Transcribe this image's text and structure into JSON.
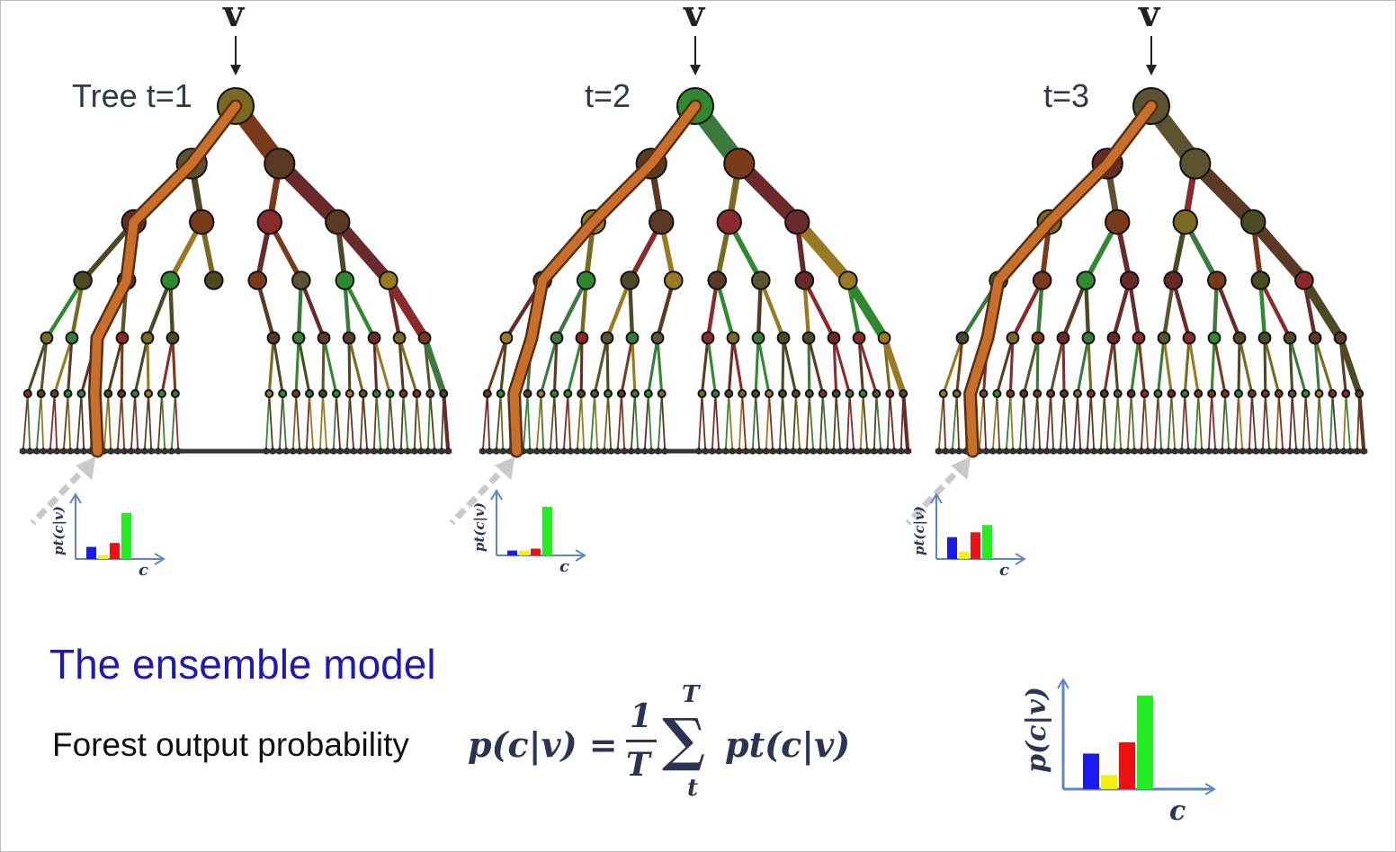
{
  "input_symbol": "v",
  "trees": [
    {
      "label": "Tree t=1",
      "hist": {
        "ylabel": "pt(c|v)",
        "xlabel": "c",
        "values": [
          0.25,
          0.08,
          0.33,
          0.95
        ]
      }
    },
    {
      "label": "t=2",
      "hist": {
        "ylabel": "pt(c|v)",
        "xlabel": "c",
        "values": [
          0.1,
          0.1,
          0.14,
          1.0
        ]
      }
    },
    {
      "label": "t=3",
      "hist": {
        "ylabel": "pt(c|v)",
        "xlabel": "c",
        "values": [
          0.45,
          0.15,
          0.55,
          0.7
        ]
      }
    }
  ],
  "class_colors": [
    "#1a1aee",
    "#f2f200",
    "#ee1111",
    "#22ee22"
  ],
  "ensemble": {
    "title": "The ensemble model",
    "label": "Forest output probability",
    "formula_lhs": "p(c|v) =",
    "frac_num": "1",
    "frac_den": "T",
    "sum_top": "T",
    "sum_symbol": "∑",
    "sum_bottom": "t",
    "formula_rhs": "pt(c|v)"
  },
  "final_hist": {
    "ylabel": "p(c|v)",
    "xlabel": "c",
    "values": [
      0.38,
      0.15,
      0.5,
      1.0
    ]
  }
}
